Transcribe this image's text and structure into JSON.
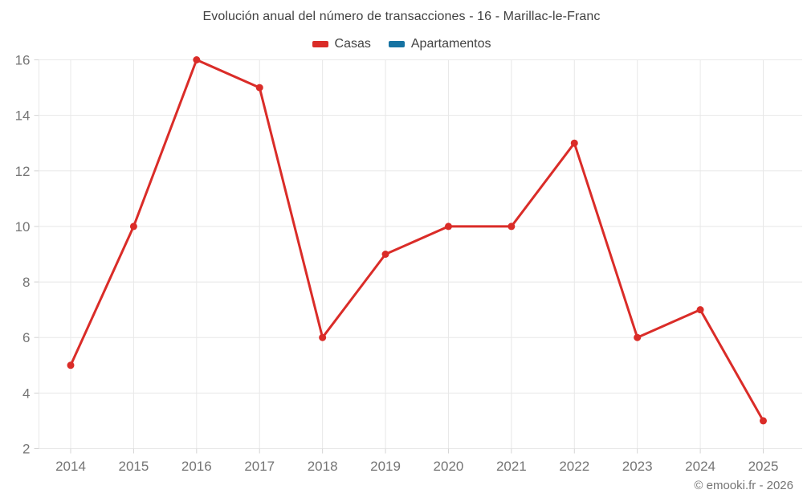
{
  "title": "Evolución anual del número de transacciones - 16 - Marillac-le-Franc",
  "legend": [
    {
      "label": "Casas",
      "color": "#da2c28"
    },
    {
      "label": "Apartamentos",
      "color": "#1673a2"
    }
  ],
  "footer": "© emooki.fr - 2026",
  "colors": {
    "grid": "#e8e8e8",
    "tick": "#d4d4d4",
    "axis_label": "#757575",
    "title_text": "#424242",
    "footer_text": "#757575",
    "background": "#ffffff"
  },
  "chart_data": {
    "type": "line",
    "title": "Evolución anual del número de transacciones - 16 - Marillac-le-Franc",
    "x": [
      2014,
      2015,
      2016,
      2017,
      2018,
      2019,
      2020,
      2021,
      2022,
      2023,
      2024,
      2025
    ],
    "series": [
      {
        "name": "Casas",
        "color": "#da2c28",
        "values": [
          5,
          10,
          16,
          15,
          6,
          9,
          10,
          10,
          13,
          6,
          7,
          3
        ]
      },
      {
        "name": "Apartamentos",
        "color": "#1673a2",
        "values": []
      }
    ],
    "xlabel": "",
    "ylabel": "",
    "ylim": [
      2,
      16
    ],
    "yticks": [
      2,
      4,
      6,
      8,
      10,
      12,
      14,
      16
    ],
    "grid": true,
    "legend_position": "top",
    "markers": true
  }
}
